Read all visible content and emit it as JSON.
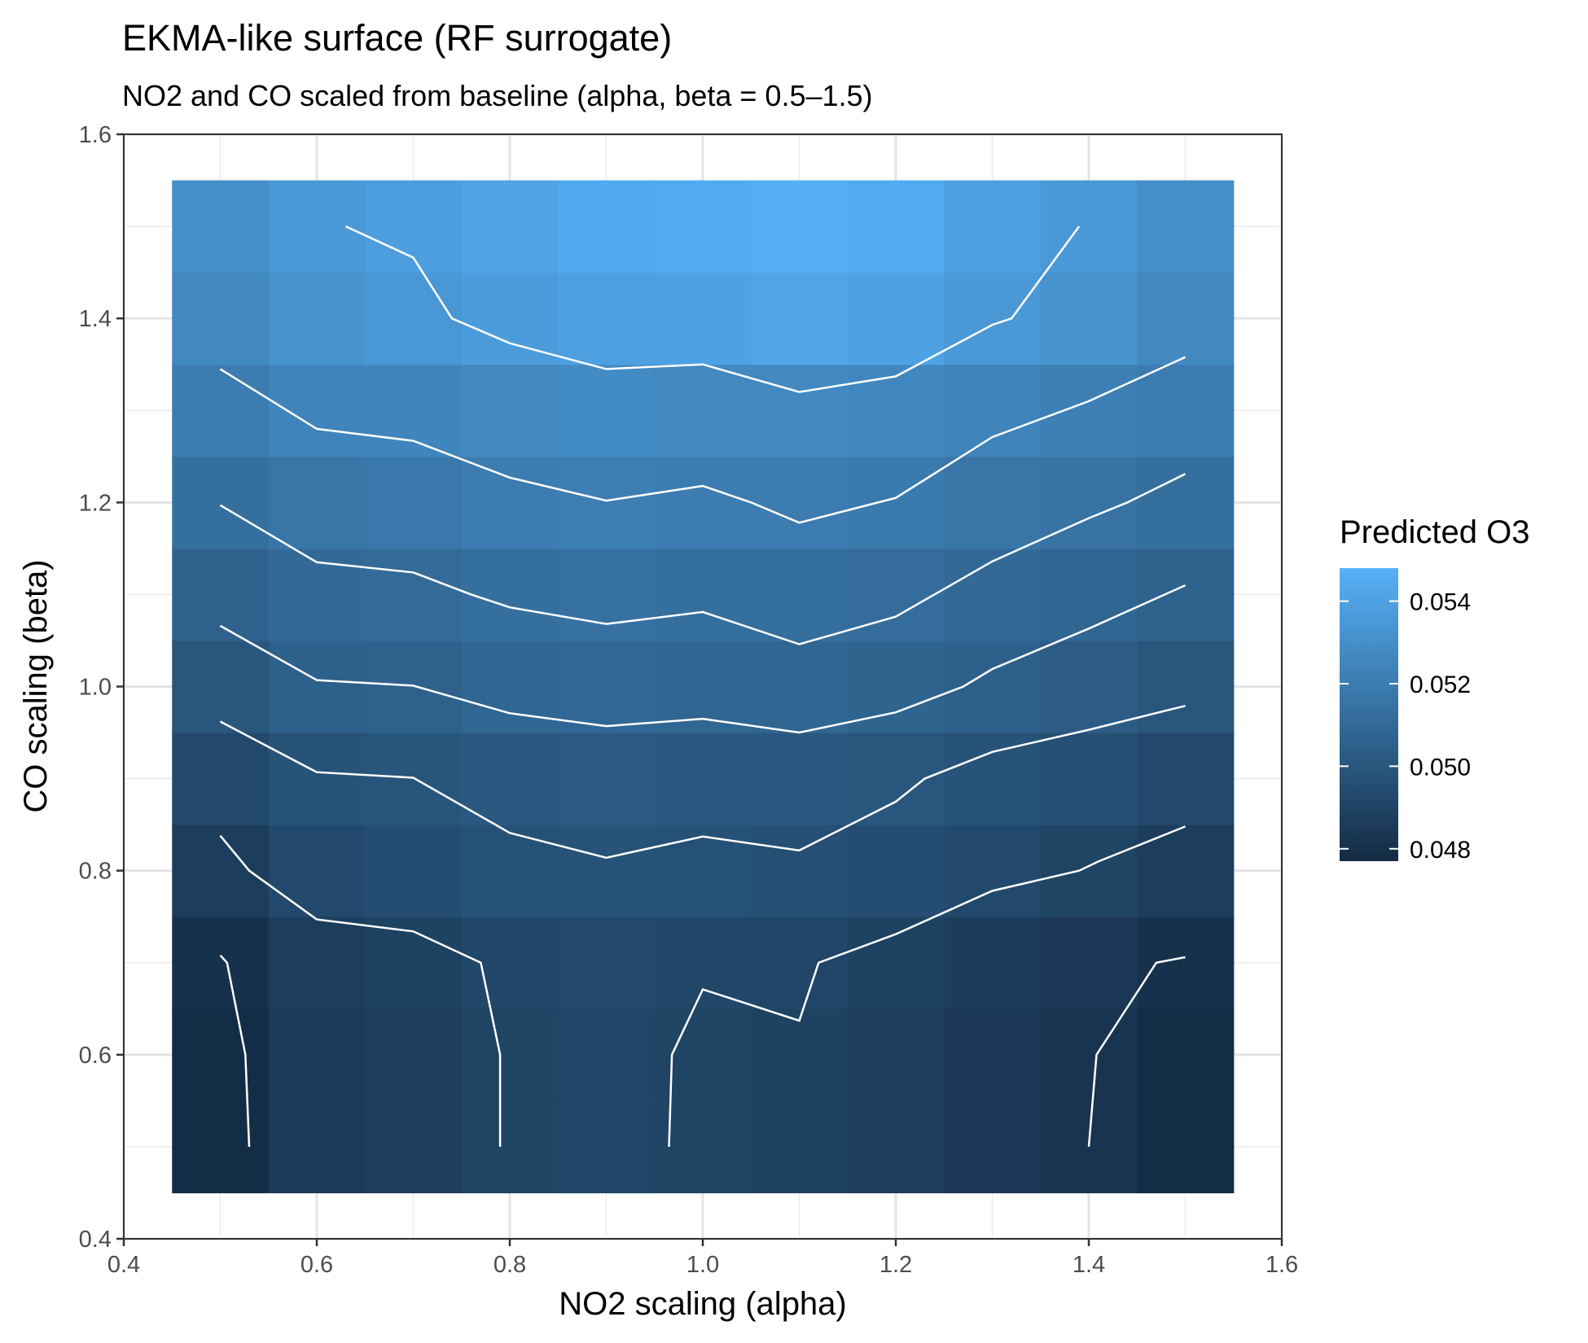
{
  "chart_data": {
    "type": "heatmap",
    "title": "EKMA-like surface (RF surrogate)",
    "subtitle": "NO2 and CO scaled from baseline (alpha, beta = 0.5–1.5)",
    "xlabel": "NO2 scaling (alpha)",
    "ylabel": "CO scaling (beta)",
    "xlim": [
      0.4,
      1.6
    ],
    "ylim": [
      0.4,
      1.6
    ],
    "x_ticks": [
      "0.4",
      "0.6",
      "0.8",
      "1.0",
      "1.2",
      "1.4",
      "1.6"
    ],
    "y_ticks": [
      "0.4",
      "0.6",
      "0.8",
      "1.0",
      "1.2",
      "1.4",
      "1.6"
    ],
    "grid": true,
    "legend": {
      "title": "Predicted O3",
      "position": "right",
      "range": [
        0.0477,
        0.0548
      ],
      "ticks": [
        "0.054",
        "0.052",
        "0.050",
        "0.048"
      ],
      "tick_values": [
        0.054,
        0.052,
        0.05,
        0.048
      ],
      "color_low": "#132B43",
      "color_high": "#56B1F7"
    },
    "x": [
      0.5,
      0.6,
      0.7,
      0.8,
      0.9,
      1.0,
      1.1,
      1.2,
      1.3,
      1.4,
      1.5
    ],
    "y": [
      0.5,
      0.6,
      0.7,
      0.8,
      0.9,
      1.0,
      1.1,
      1.2,
      1.3,
      1.4,
      1.5
    ],
    "z": [
      [
        0.0478,
        0.0485,
        0.0487,
        0.049,
        0.0491,
        0.049,
        0.0489,
        0.0487,
        0.0484,
        0.0482,
        0.0478
      ],
      [
        0.0478,
        0.0485,
        0.0487,
        0.049,
        0.0491,
        0.049,
        0.0489,
        0.0487,
        0.0484,
        0.0482,
        0.0478
      ],
      [
        0.048,
        0.0487,
        0.0489,
        0.0492,
        0.0493,
        0.0492,
        0.0491,
        0.0489,
        0.0486,
        0.0484,
        0.048
      ],
      [
        0.0487,
        0.0493,
        0.0495,
        0.0497,
        0.0498,
        0.0497,
        0.0496,
        0.0495,
        0.0493,
        0.049,
        0.0487
      ],
      [
        0.0493,
        0.0498,
        0.0499,
        0.0501,
        0.0502,
        0.0501,
        0.0501,
        0.05,
        0.0498,
        0.0496,
        0.0493
      ],
      [
        0.05,
        0.0505,
        0.0506,
        0.0508,
        0.0509,
        0.0508,
        0.0508,
        0.0507,
        0.0505,
        0.0503,
        0.05
      ],
      [
        0.0506,
        0.051,
        0.0511,
        0.0513,
        0.0514,
        0.0513,
        0.0513,
        0.0512,
        0.051,
        0.0508,
        0.0506
      ],
      [
        0.0513,
        0.0517,
        0.0518,
        0.052,
        0.0521,
        0.052,
        0.052,
        0.0519,
        0.0517,
        0.0515,
        0.0513
      ],
      [
        0.052,
        0.0524,
        0.0525,
        0.0527,
        0.0528,
        0.0527,
        0.0527,
        0.0526,
        0.0524,
        0.0522,
        0.052
      ],
      [
        0.0527,
        0.0532,
        0.0534,
        0.0537,
        0.0539,
        0.054,
        0.0542,
        0.054,
        0.0535,
        0.0532,
        0.0527
      ],
      [
        0.053,
        0.0535,
        0.0538,
        0.0541,
        0.0544,
        0.0545,
        0.0547,
        0.0545,
        0.0539,
        0.0535,
        0.053
      ]
    ],
    "contours": [
      {
        "points": [
          [
            0.63,
            1.5
          ],
          [
            0.7,
            1.466
          ],
          [
            0.74,
            1.4
          ],
          [
            0.8,
            1.373
          ],
          [
            0.9,
            1.345
          ],
          [
            1.0,
            1.35
          ],
          [
            1.1,
            1.32
          ],
          [
            1.2,
            1.337
          ],
          [
            1.3,
            1.393
          ],
          [
            1.32,
            1.4
          ],
          [
            1.39,
            1.5
          ]
        ]
      },
      {
        "points": [
          [
            0.5,
            1.345
          ],
          [
            0.6,
            1.28
          ],
          [
            0.7,
            1.267
          ],
          [
            0.8,
            1.227
          ],
          [
            0.9,
            1.202
          ],
          [
            1.0,
            1.218
          ],
          [
            1.05,
            1.2
          ],
          [
            1.1,
            1.178
          ],
          [
            1.2,
            1.205
          ],
          [
            1.3,
            1.271
          ],
          [
            1.4,
            1.31
          ],
          [
            1.5,
            1.358
          ]
        ]
      },
      {
        "points": [
          [
            0.5,
            1.197
          ],
          [
            0.6,
            1.135
          ],
          [
            0.7,
            1.124
          ],
          [
            0.76,
            1.1
          ],
          [
            0.8,
            1.086
          ],
          [
            0.9,
            1.068
          ],
          [
            1.0,
            1.081
          ],
          [
            1.1,
            1.046
          ],
          [
            1.2,
            1.076
          ],
          [
            1.24,
            1.1
          ],
          [
            1.3,
            1.136
          ],
          [
            1.4,
            1.183
          ],
          [
            1.44,
            1.2
          ],
          [
            1.5,
            1.231
          ]
        ]
      },
      {
        "points": [
          [
            0.5,
            1.066
          ],
          [
            0.6,
            1.007
          ],
          [
            0.7,
            1.001
          ],
          [
            0.8,
            0.971
          ],
          [
            0.9,
            0.957
          ],
          [
            1.0,
            0.965
          ],
          [
            1.1,
            0.95
          ],
          [
            1.2,
            0.972
          ],
          [
            1.27,
            1.0
          ],
          [
            1.3,
            1.019
          ],
          [
            1.4,
            1.063
          ],
          [
            1.5,
            1.11
          ]
        ]
      },
      {
        "points": [
          [
            0.5,
            0.962
          ],
          [
            0.6,
            0.907
          ],
          [
            0.7,
            0.901
          ],
          [
            0.8,
            0.841
          ],
          [
            0.9,
            0.814
          ],
          [
            1.0,
            0.837
          ],
          [
            1.1,
            0.822
          ],
          [
            1.2,
            0.875
          ],
          [
            1.23,
            0.9
          ],
          [
            1.3,
            0.929
          ],
          [
            1.4,
            0.953
          ],
          [
            1.5,
            0.979
          ]
        ]
      },
      {
        "points": [
          [
            0.5,
            0.838
          ],
          [
            0.53,
            0.8
          ],
          [
            0.6,
            0.747
          ],
          [
            0.7,
            0.734
          ],
          [
            0.77,
            0.7
          ],
          [
            0.79,
            0.6
          ],
          [
            0.79,
            0.5
          ]
        ]
      },
      {
        "points": [
          [
            0.965,
            0.5
          ],
          [
            0.968,
            0.6
          ],
          [
            1.0,
            0.671
          ],
          [
            1.1,
            0.637
          ],
          [
            1.12,
            0.7
          ],
          [
            1.2,
            0.731
          ],
          [
            1.3,
            0.778
          ],
          [
            1.39,
            0.8
          ],
          [
            1.41,
            0.81
          ],
          [
            1.5,
            0.848
          ]
        ]
      },
      {
        "points": [
          [
            0.5,
            0.708
          ],
          [
            0.507,
            0.7
          ],
          [
            0.526,
            0.6
          ],
          [
            0.53,
            0.5
          ]
        ]
      },
      {
        "points": [
          [
            1.4,
            0.5
          ],
          [
            1.408,
            0.6
          ],
          [
            1.47,
            0.7
          ],
          [
            1.5,
            0.706
          ]
        ]
      }
    ]
  }
}
